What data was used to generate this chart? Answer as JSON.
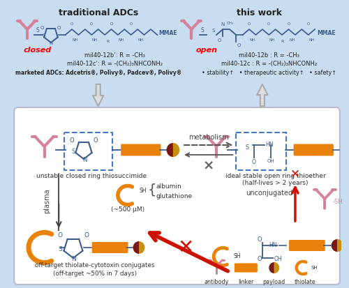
{
  "bg_color": "#c8ddf0",
  "box_bg": "#ffffff",
  "title_left": "traditional ADCs",
  "title_right": "this work",
  "closed_label": "closed",
  "open_label": "open",
  "label1_left": "mil40-12b’: R = -CH₃",
  "label2_left": "mil40-12c’: R = -(CH₂)₃NHCONH₂",
  "label1_right": "mil40-12b : R = -CH₃",
  "label2_right": "mil40-12c : R = -(CH₂)₃NHCONH₂",
  "marketed_label": "marketed ADCs: Adcetris®, Polivy®, Padcev®, Polivy®",
  "benefits": "• stability↑   • therapeutic activity↑   • safety↑",
  "text_unstable": "unstable closed ring thiosuccimide",
  "text_stable": "ideal stable open ring thioether\n(half-lives > 2 years)",
  "text_metabolism": "metabolism",
  "text_plasma": "plasma",
  "text_albumin": "albumin\nglutathione",
  "text_conc": "(~500 μM)",
  "text_offtarget1": "off-target thiolate-cytotoxin conjugates",
  "text_offtarget2": "(off-target ~50% in 7 days)",
  "text_unconj": "unconjugated",
  "legend_antibody": "antibody",
  "legend_linker": "linker",
  "legend_payload": "payload",
  "legend_thiolate": "thiolate",
  "pink": "#d4849a",
  "orange": "#e8820a",
  "dark_red": "#7a1818",
  "gold": "#c89010",
  "blue_struct": "#3a5a8a",
  "red_arrow": "#cc1100",
  "gray": "#888888"
}
